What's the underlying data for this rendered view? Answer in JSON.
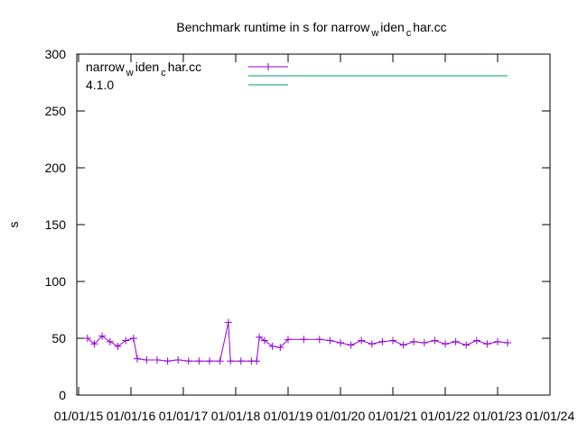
{
  "chart_data": {
    "type": "line",
    "title": [
      "Benchmark runtime in s for narrow",
      "w",
      "iden",
      "c",
      "har.cc"
    ],
    "y_label": "s",
    "x": [
      2015.17,
      2015.3,
      2015.45,
      2015.6,
      2015.75,
      2015.9,
      2016.05,
      2016.12,
      2016.3,
      2016.5,
      2016.7,
      2016.9,
      2017.1,
      2017.3,
      2017.5,
      2017.7,
      2017.86,
      2017.9,
      2018.1,
      2018.3,
      2018.4,
      2018.45,
      2018.55,
      2018.7,
      2018.85,
      2019.0,
      2019.3,
      2019.6,
      2019.8,
      2020.0,
      2020.2,
      2020.4,
      2020.6,
      2020.8,
      2021.0,
      2021.2,
      2021.4,
      2021.6,
      2021.8,
      2022.0,
      2022.2,
      2022.4,
      2022.6,
      2022.8,
      2023.0,
      2023.19
    ],
    "series": [
      {
        "name": [
          "narrow",
          "w",
          "iden",
          "c",
          "har.cc"
        ],
        "color": "#9400d3",
        "marker": "plus",
        "values": [
          50,
          45,
          52,
          47,
          43,
          48,
          50,
          32,
          31,
          31,
          30,
          31,
          30,
          30,
          30,
          30,
          64,
          30,
          30,
          30,
          30,
          51,
          48,
          43,
          42,
          49,
          49,
          49,
          48,
          46,
          44,
          48,
          45,
          47,
          48,
          44,
          47,
          46,
          48,
          45,
          47,
          44,
          48,
          45,
          47,
          46
        ]
      },
      {
        "name": "4.1.0",
        "color": "#009e73",
        "x": [
          2018.24,
          2023.19
        ],
        "values": [
          281,
          281
        ]
      }
    ],
    "xlim": [
      2015,
      2024
    ],
    "xticks": [
      {
        "value": 2015,
        "label": "01/01/15"
      },
      {
        "value": 2016,
        "label": "01/01/16"
      },
      {
        "value": 2017,
        "label": "01/01/17"
      },
      {
        "value": 2018,
        "label": "01/01/18"
      },
      {
        "value": 2019,
        "label": "01/01/19"
      },
      {
        "value": 2020,
        "label": "01/01/20"
      },
      {
        "value": 2021,
        "label": "01/01/21"
      },
      {
        "value": 2022,
        "label": "01/01/22"
      },
      {
        "value": 2023,
        "label": "01/01/23"
      },
      {
        "value": 2024,
        "label": "01/01/24"
      }
    ],
    "ylim": [
      0,
      300
    ],
    "yticks": [
      0,
      50,
      100,
      150,
      200,
      250,
      300
    ],
    "legend": "top-left"
  }
}
